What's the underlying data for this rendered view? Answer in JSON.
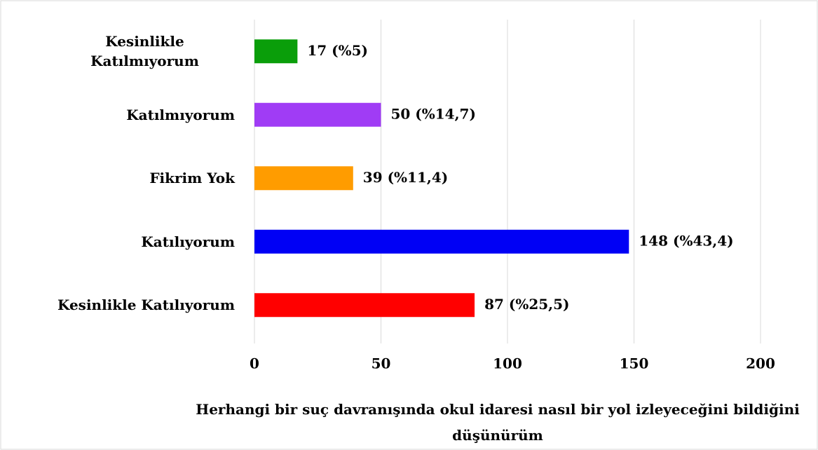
{
  "chart_data": {
    "type": "barh",
    "title": "Herhangi bir suç davranışında okul idaresi nasıl bir yol izleyeceğini bildiğini düşünürüm",
    "categories": [
      "Kesinlikle Katılmıyorum",
      "Katılmıyorum",
      "Fikrim Yok",
      "Katılıyorum",
      "Kesinlikle Katılıyorum"
    ],
    "values": [
      17,
      50,
      39,
      148,
      87
    ],
    "value_labels": [
      "17 (%5)",
      "50 (%14,7)",
      "39 (%11,4)",
      "148 (%43,4)",
      "87 (%25,5)"
    ],
    "colors": [
      "#0a9e0a",
      "#a03cf5",
      "#ff9c00",
      "#0000f5",
      "#ff0000"
    ],
    "xlim": [
      0,
      200
    ],
    "xticks": [
      0,
      50,
      100,
      150,
      200
    ],
    "grid": true
  }
}
